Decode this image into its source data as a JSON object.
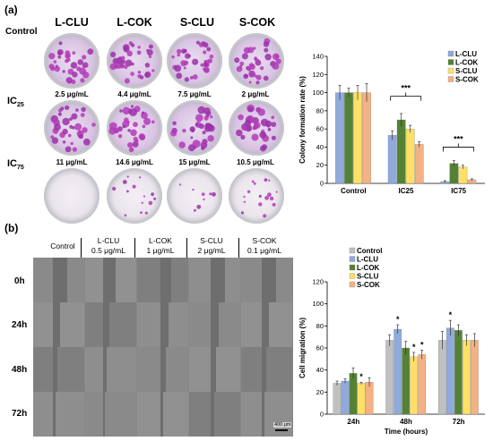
{
  "panel_a_label": "(a)",
  "panel_b_label": "(b)",
  "colony": {
    "column_headers": [
      "L-CLU",
      "L-COK",
      "S-CLU",
      "S-COK"
    ],
    "row_labels": {
      "control": "Control",
      "ic25_main": "IC",
      "ic25_sub": "25",
      "ic75_main": "IC",
      "ic75_sub": "75"
    },
    "ic25_conc": [
      "2.5 μg/mL",
      "4.4 μg/mL",
      "7.5 μg/mL",
      "2 μg/mL"
    ],
    "ic75_conc": [
      "11 μg/mL",
      "14.6 μg/mL",
      "15 μg/mL",
      "10.5 μg/mL"
    ]
  },
  "migration": {
    "column_headers": [
      {
        "line1": "Control",
        "line2": ""
      },
      {
        "line1": "L-CLU",
        "line2": "0.5 μg/mL"
      },
      {
        "line1": "L-COK",
        "line2": "1 μg/mL"
      },
      {
        "line1": "S-CLU",
        "line2": "2 μg/mL"
      },
      {
        "line1": "S-COK",
        "line2": "0.1 μg/mL"
      }
    ],
    "row_labels": [
      "0h",
      "24h",
      "48h",
      "72h"
    ],
    "scale_bar": "400 μm"
  },
  "chart_data": [
    {
      "type": "bar",
      "ylabel": "Colony formation rate (%)",
      "xlabel": "",
      "ylim": [
        0,
        140
      ],
      "yticks": [
        0,
        20,
        40,
        60,
        80,
        100,
        120,
        140
      ],
      "categories": [
        "Control",
        "IC25",
        "IC75"
      ],
      "series": [
        {
          "name": "L-CLU",
          "color": "#8faadc",
          "values": [
            100,
            53,
            2
          ],
          "errors": [
            8,
            5,
            1
          ]
        },
        {
          "name": "L-COK",
          "color": "#548235",
          "values": [
            100,
            70,
            22
          ],
          "errors": [
            5,
            7,
            3
          ]
        },
        {
          "name": "S-CLU",
          "color": "#ffe066",
          "values": [
            100,
            60,
            18
          ],
          "errors": [
            8,
            4,
            2
          ]
        },
        {
          "name": "S-COK",
          "color": "#f4b183",
          "values": [
            100,
            43,
            4
          ],
          "errors": [
            10,
            3,
            1
          ]
        }
      ],
      "annotations": [
        "***",
        "***"
      ],
      "legend_position": "top-right"
    },
    {
      "type": "bar",
      "ylabel": "Cell migration (%)",
      "xlabel": "Time (hours)",
      "ylim": [
        0,
        120
      ],
      "yticks": [
        0,
        20,
        40,
        60,
        80,
        100,
        120
      ],
      "categories": [
        "24h",
        "48h",
        "72h"
      ],
      "series": [
        {
          "name": "Control",
          "color": "#c0c0c0",
          "values": [
            28,
            67,
            67
          ],
          "errors": [
            2,
            5,
            8
          ]
        },
        {
          "name": "L-CLU",
          "color": "#8faadc",
          "values": [
            30,
            77,
            78
          ],
          "errors": [
            2,
            4,
            7
          ]
        },
        {
          "name": "L-COK",
          "color": "#548235",
          "values": [
            37,
            60,
            76
          ],
          "errors": [
            5,
            6,
            5
          ]
        },
        {
          "name": "S-CLU",
          "color": "#ffe066",
          "values": [
            28,
            52,
            67
          ],
          "errors": [
            1,
            4,
            5
          ]
        },
        {
          "name": "S-COK",
          "color": "#f4b183",
          "values": [
            29,
            54,
            67
          ],
          "errors": [
            4,
            4,
            6
          ]
        }
      ],
      "annotations": [
        "*",
        "*",
        "*",
        "*",
        "*"
      ],
      "legend_position": "top-left"
    }
  ]
}
